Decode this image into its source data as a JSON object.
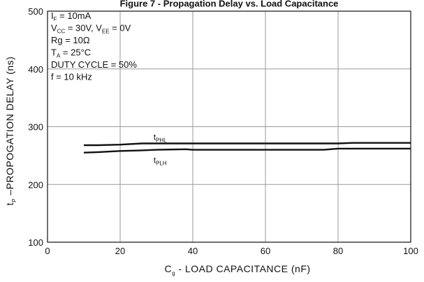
{
  "chart_data": {
    "type": "line",
    "title": "Figure 7 - Propagation Delay vs. Load Capacitance",
    "xlabel": {
      "main": "C",
      "sub": "g",
      "rest": " - LOAD CAPACITANCE (nF)"
    },
    "ylabel": {
      "main": "t",
      "sub": "P",
      "rest": " –PROPOGATION DELAY (ns)"
    },
    "xlim": [
      0,
      100
    ],
    "ylim": [
      100,
      500
    ],
    "x_ticks": [
      "0",
      "20",
      "40",
      "60",
      "80",
      "100"
    ],
    "y_ticks": [
      "100",
      "200",
      "300",
      "400",
      "500"
    ],
    "grid": true,
    "conditions": [
      {
        "main": "I",
        "sub": "F",
        "rest": " = 10mA"
      },
      {
        "main": "V",
        "sub": "CC",
        "rest": " = 30V, V",
        "sub2": "EE",
        "rest2": " = 0V"
      },
      {
        "main": "Rg = 10Ω",
        "sub": "",
        "rest": ""
      },
      {
        "main": "T",
        "sub": "A",
        "rest": " = 25°C"
      },
      {
        "main": "DUTY CYCLE = 50%",
        "sub": "",
        "rest": ""
      },
      {
        "main": "f = 10 kHz",
        "sub": "",
        "rest": ""
      }
    ],
    "series": [
      {
        "name_main": "t",
        "name_sub": "PHL",
        "x": [
          10,
          14,
          20,
          26,
          40,
          60,
          80,
          84,
          100
        ],
        "y": [
          268,
          268,
          269,
          271,
          271,
          271,
          271,
          272,
          272
        ]
      },
      {
        "name_main": "t",
        "name_sub": "PLH",
        "x": [
          10,
          14,
          20,
          26,
          30,
          38,
          40,
          60,
          76,
          80,
          100
        ],
        "y": [
          255,
          256,
          258,
          259,
          260,
          261,
          260,
          260,
          260,
          262,
          262
        ]
      }
    ]
  },
  "colors": {
    "line": "#111111",
    "grid": "#9a9a9a",
    "frame": "#111111"
  }
}
